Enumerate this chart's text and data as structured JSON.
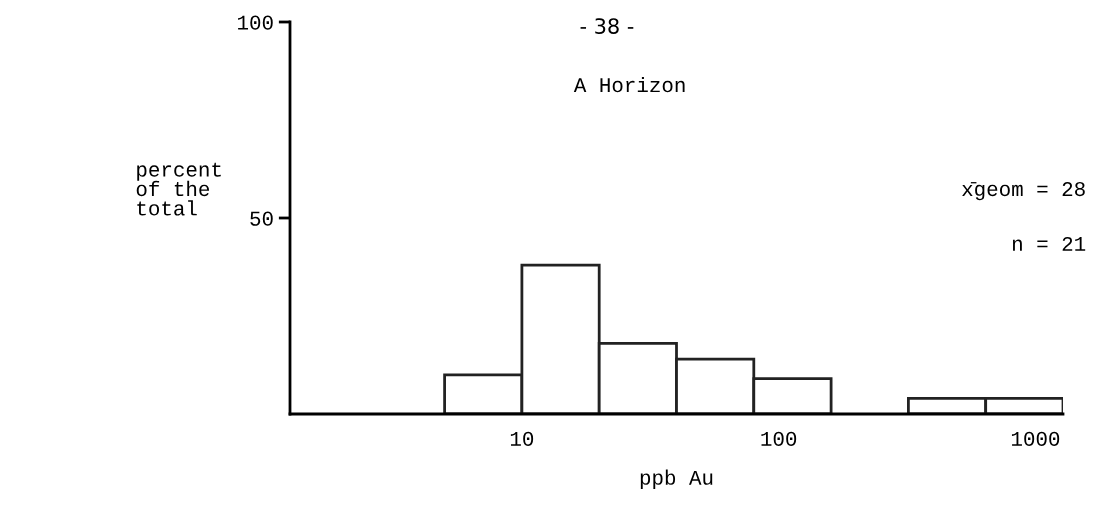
{
  "chart_data": {
    "type": "histogram",
    "title": "A Horizon",
    "xlabel": "ppb Au",
    "ylabel": "percent\nof the\ntotal",
    "bins": [
      5,
      10,
      20,
      40,
      80,
      160,
      320,
      640,
      1280
    ],
    "values": [
      10,
      38,
      18,
      14,
      9,
      0,
      4,
      4
    ],
    "color": "#ffffff",
    "log": "x",
    "xlim": [
      1.25,
      1280
    ],
    "xticks": [
      10,
      100,
      1000
    ],
    "ylim": [
      0,
      100
    ],
    "yticks": [
      50,
      100
    ],
    "grid": false,
    "legend": false,
    "annotations": [
      "- 38 -",
      "x̄geom = 28",
      "n = 21"
    ]
  }
}
